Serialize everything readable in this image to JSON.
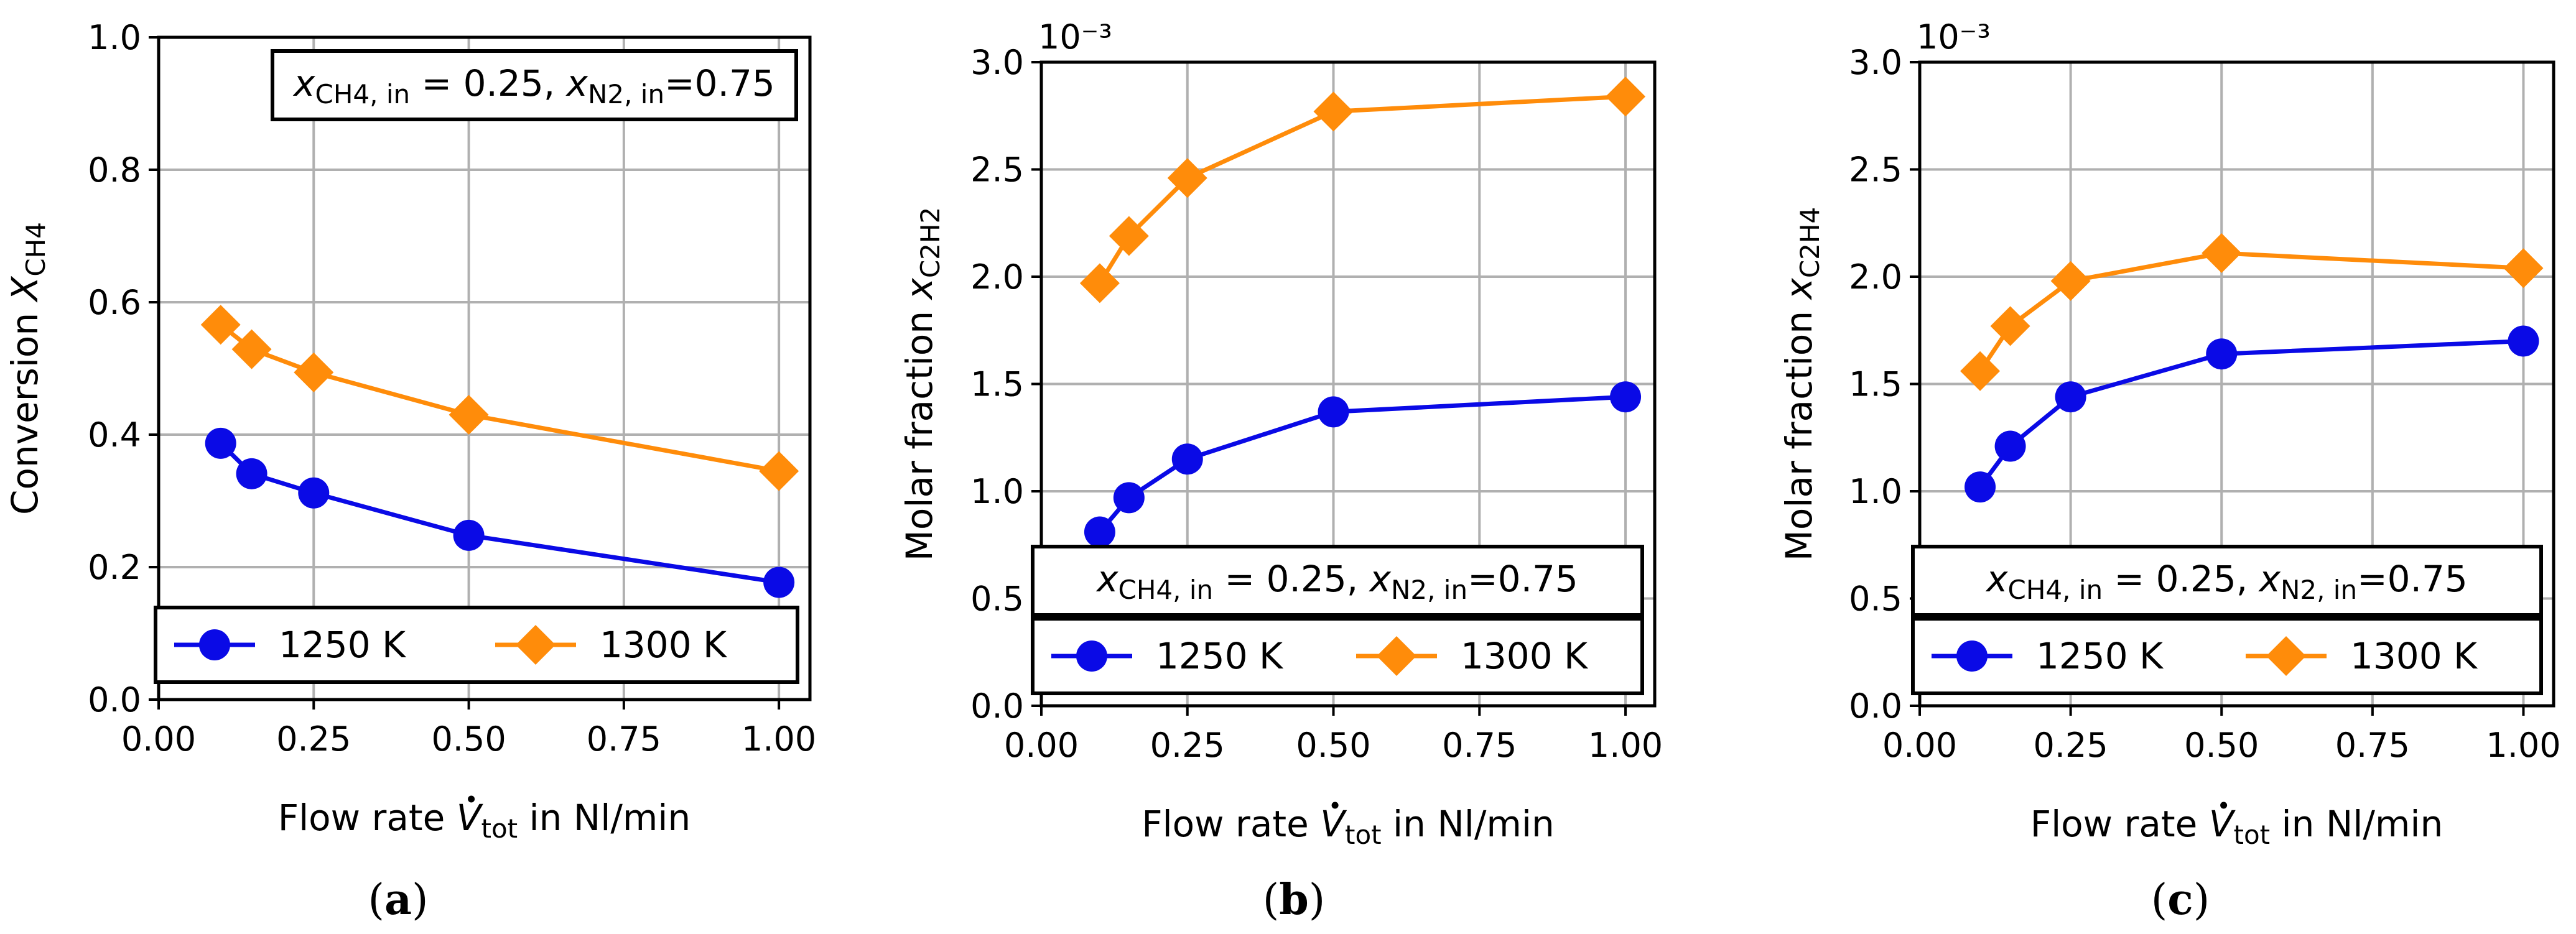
{
  "colors": {
    "s1250": "#0a0ae6",
    "s1300": "#ff8c0a",
    "grid": "#b0b0b0"
  },
  "chart_data": [
    {
      "type": "line",
      "caption_letter": "a",
      "title": "",
      "x": [
        0.1,
        0.15,
        0.25,
        0.5,
        1.0
      ],
      "xlim": [
        0.0,
        1.05
      ],
      "xticks": [
        "0.00",
        "0.25",
        "0.50",
        "0.75",
        "1.00"
      ],
      "xlabel_prefix": "Flow rate ",
      "xlabel_symbol": "V",
      "xlabel_sub": "tot",
      "xlabel_suffix": " in Nl/min",
      "ylim": [
        0.0,
        1.0
      ],
      "yticks": [
        "0.0",
        "0.2",
        "0.4",
        "0.6",
        "0.8",
        "1.0"
      ],
      "ylabel_main": "Conversion ",
      "ylabel_symbol": "X",
      "ylabel_sub": "CH4",
      "scale_note": "",
      "grid": true,
      "annotation": {
        "x1": "x",
        "sub1": "CH4, in",
        "mid": " = 0.25, ",
        "x2": "x",
        "sub2": "N2, in",
        "end": "=0.75"
      },
      "legend": [
        "1250 K",
        "1300 K"
      ],
      "series": [
        {
          "name": "1250 K",
          "marker": "circle",
          "values": [
            0.387,
            0.341,
            0.312,
            0.248,
            0.177
          ]
        },
        {
          "name": "1300 K",
          "marker": "diamond",
          "values": [
            0.566,
            0.529,
            0.494,
            0.43,
            0.345
          ]
        }
      ]
    },
    {
      "type": "line",
      "caption_letter": "b",
      "title": "",
      "x": [
        0.1,
        0.15,
        0.25,
        0.5,
        1.0
      ],
      "xlim": [
        0.0,
        1.05
      ],
      "xticks": [
        "0.00",
        "0.25",
        "0.50",
        "0.75",
        "1.00"
      ],
      "xlabel_prefix": "Flow rate ",
      "xlabel_symbol": "V",
      "xlabel_sub": "tot",
      "xlabel_suffix": " in Nl/min",
      "ylim": [
        0.0,
        3.0
      ],
      "yticks": [
        "0.0",
        "0.5",
        "1.0",
        "1.5",
        "2.0",
        "2.5",
        "3.0"
      ],
      "ylabel_main": "Molar fraction ",
      "ylabel_symbol": "x",
      "ylabel_sub": "C2H2",
      "scale_note": "10⁻³",
      "grid": true,
      "annotation": {
        "x1": "x",
        "sub1": "CH4, in",
        "mid": " = 0.25, ",
        "x2": "x",
        "sub2": "N2, in",
        "end": "=0.75"
      },
      "legend": [
        "1250 K",
        "1300 K"
      ],
      "series": [
        {
          "name": "1250 K",
          "marker": "circle",
          "values": [
            0.81,
            0.97,
            1.15,
            1.37,
            1.44
          ]
        },
        {
          "name": "1300 K",
          "marker": "diamond",
          "values": [
            1.97,
            2.19,
            2.46,
            2.77,
            2.84
          ]
        }
      ]
    },
    {
      "type": "line",
      "caption_letter": "c",
      "title": "",
      "x": [
        0.1,
        0.15,
        0.25,
        0.5,
        1.0
      ],
      "xlim": [
        0.0,
        1.05
      ],
      "xticks": [
        "0.00",
        "0.25",
        "0.50",
        "0.75",
        "1.00"
      ],
      "xlabel_prefix": "Flow rate ",
      "xlabel_symbol": "V",
      "xlabel_sub": "tot",
      "xlabel_suffix": " in Nl/min",
      "ylim": [
        0.0,
        3.0
      ],
      "yticks": [
        "0.0",
        "0.5",
        "1.0",
        "1.5",
        "2.0",
        "2.5",
        "3.0"
      ],
      "ylabel_main": "Molar fraction ",
      "ylabel_symbol": "x",
      "ylabel_sub": "C2H4",
      "scale_note": "10⁻³",
      "grid": true,
      "annotation": {
        "x1": "x",
        "sub1": "CH4, in",
        "mid": " = 0.25, ",
        "x2": "x",
        "sub2": "N2, in",
        "end": "=0.75"
      },
      "legend": [
        "1250 K",
        "1300 K"
      ],
      "series": [
        {
          "name": "1250 K",
          "marker": "circle",
          "values": [
            1.02,
            1.21,
            1.44,
            1.64,
            1.7
          ]
        },
        {
          "name": "1300 K",
          "marker": "diamond",
          "values": [
            1.56,
            1.77,
            1.98,
            2.11,
            2.04
          ]
        }
      ]
    }
  ]
}
